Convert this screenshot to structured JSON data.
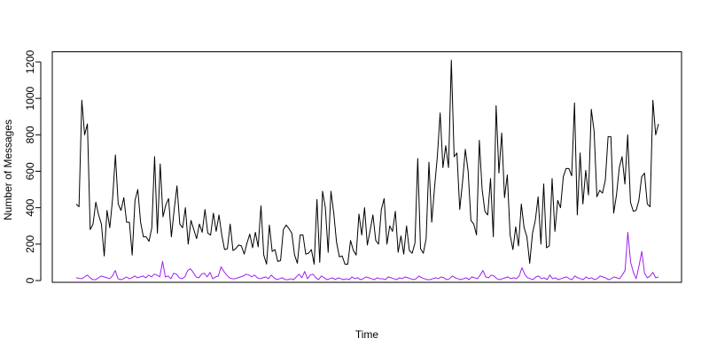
{
  "chart_data": {
    "type": "line",
    "title": "",
    "xlabel": "Time",
    "ylabel": "Number of Messages",
    "ylim": [
      0,
      1200
    ],
    "yticks": [
      0,
      200,
      400,
      600,
      800,
      1000,
      1200
    ],
    "grid": false,
    "series": [
      {
        "color": "#000000",
        "values": [
          420,
          405,
          990,
          800,
          860,
          280,
          310,
          430,
          360,
          310,
          135,
          385,
          290,
          450,
          690,
          420,
          385,
          455,
          320,
          320,
          140,
          440,
          500,
          320,
          240,
          240,
          215,
          290,
          680,
          260,
          640,
          350,
          415,
          450,
          240,
          390,
          520,
          310,
          290,
          400,
          200,
          330,
          280,
          230,
          310,
          265,
          390,
          260,
          250,
          370,
          270,
          360,
          250,
          170,
          175,
          310,
          165,
          175,
          195,
          190,
          145,
          205,
          255,
          180,
          265,
          185,
          410,
          140,
          90,
          305,
          160,
          170,
          105,
          110,
          280,
          305,
          285,
          260,
          140,
          95,
          250,
          250,
          145,
          150,
          170,
          90,
          445,
          100,
          490,
          400,
          155,
          490,
          370,
          210,
          130,
          135,
          90,
          90,
          220,
          165,
          140,
          365,
          250,
          400,
          195,
          275,
          360,
          220,
          200,
          390,
          450,
          200,
          300,
          270,
          380,
          155,
          245,
          145,
          300,
          165,
          150,
          205,
          670,
          175,
          150,
          230,
          650,
          320,
          510,
          680,
          920,
          620,
          740,
          620,
          1210,
          680,
          700,
          390,
          540,
          720,
          600,
          330,
          310,
          250,
          770,
          500,
          380,
          360,
          560,
          240,
          960,
          590,
          810,
          455,
          580,
          250,
          170,
          295,
          190,
          420,
          290,
          240,
          95,
          260,
          330,
          460,
          200,
          530,
          180,
          190,
          560,
          270,
          440,
          400,
          570,
          615,
          615,
          575,
          975,
          360,
          700,
          420,
          605,
          470,
          940,
          820,
          460,
          495,
          480,
          550,
          790,
          790,
          370,
          470,
          620,
          680,
          530,
          800,
          430,
          380,
          385,
          440,
          570,
          590,
          420,
          405,
          990,
          800,
          860
        ]
      },
      {
        "color": "#a020f0",
        "values": [
          15,
          12,
          10,
          20,
          30,
          15,
          5,
          5,
          15,
          25,
          20,
          15,
          10,
          25,
          55,
          10,
          5,
          10,
          20,
          10,
          15,
          25,
          15,
          20,
          25,
          15,
          30,
          20,
          35,
          30,
          20,
          105,
          20,
          25,
          10,
          40,
          35,
          15,
          10,
          20,
          55,
          65,
          45,
          20,
          15,
          35,
          40,
          20,
          45,
          10,
          20,
          25,
          75,
          50,
          30,
          15,
          10,
          10,
          15,
          20,
          25,
          35,
          30,
          20,
          30,
          15,
          10,
          15,
          20,
          10,
          30,
          15,
          5,
          10,
          15,
          5,
          5,
          10,
          5,
          20,
          35,
          15,
          50,
          10,
          30,
          35,
          15,
          5,
          25,
          15,
          5,
          10,
          15,
          5,
          15,
          10,
          5,
          10,
          5,
          20,
          10,
          15,
          5,
          10,
          20,
          15,
          10,
          5,
          15,
          10,
          10,
          5,
          20,
          15,
          10,
          5,
          15,
          10,
          20,
          15,
          10,
          5,
          10,
          25,
          15,
          10,
          5,
          5,
          10,
          15,
          10,
          20,
          15,
          5,
          10,
          25,
          15,
          10,
          5,
          10,
          15,
          5,
          20,
          15,
          10,
          30,
          55,
          20,
          15,
          30,
          25,
          10,
          5,
          10,
          15,
          20,
          10,
          15,
          10,
          25,
          70,
          35,
          15,
          10,
          5,
          20,
          25,
          10,
          15,
          5,
          30,
          10,
          15,
          5,
          10,
          15,
          20,
          10,
          5,
          25,
          15,
          10,
          5,
          20,
          10,
          15,
          5,
          10,
          25,
          20,
          15,
          5,
          10,
          20,
          15,
          10,
          30,
          55,
          265,
          100,
          45,
          10,
          80,
          160,
          40,
          15,
          25,
          45,
          15,
          20
        ]
      }
    ]
  }
}
